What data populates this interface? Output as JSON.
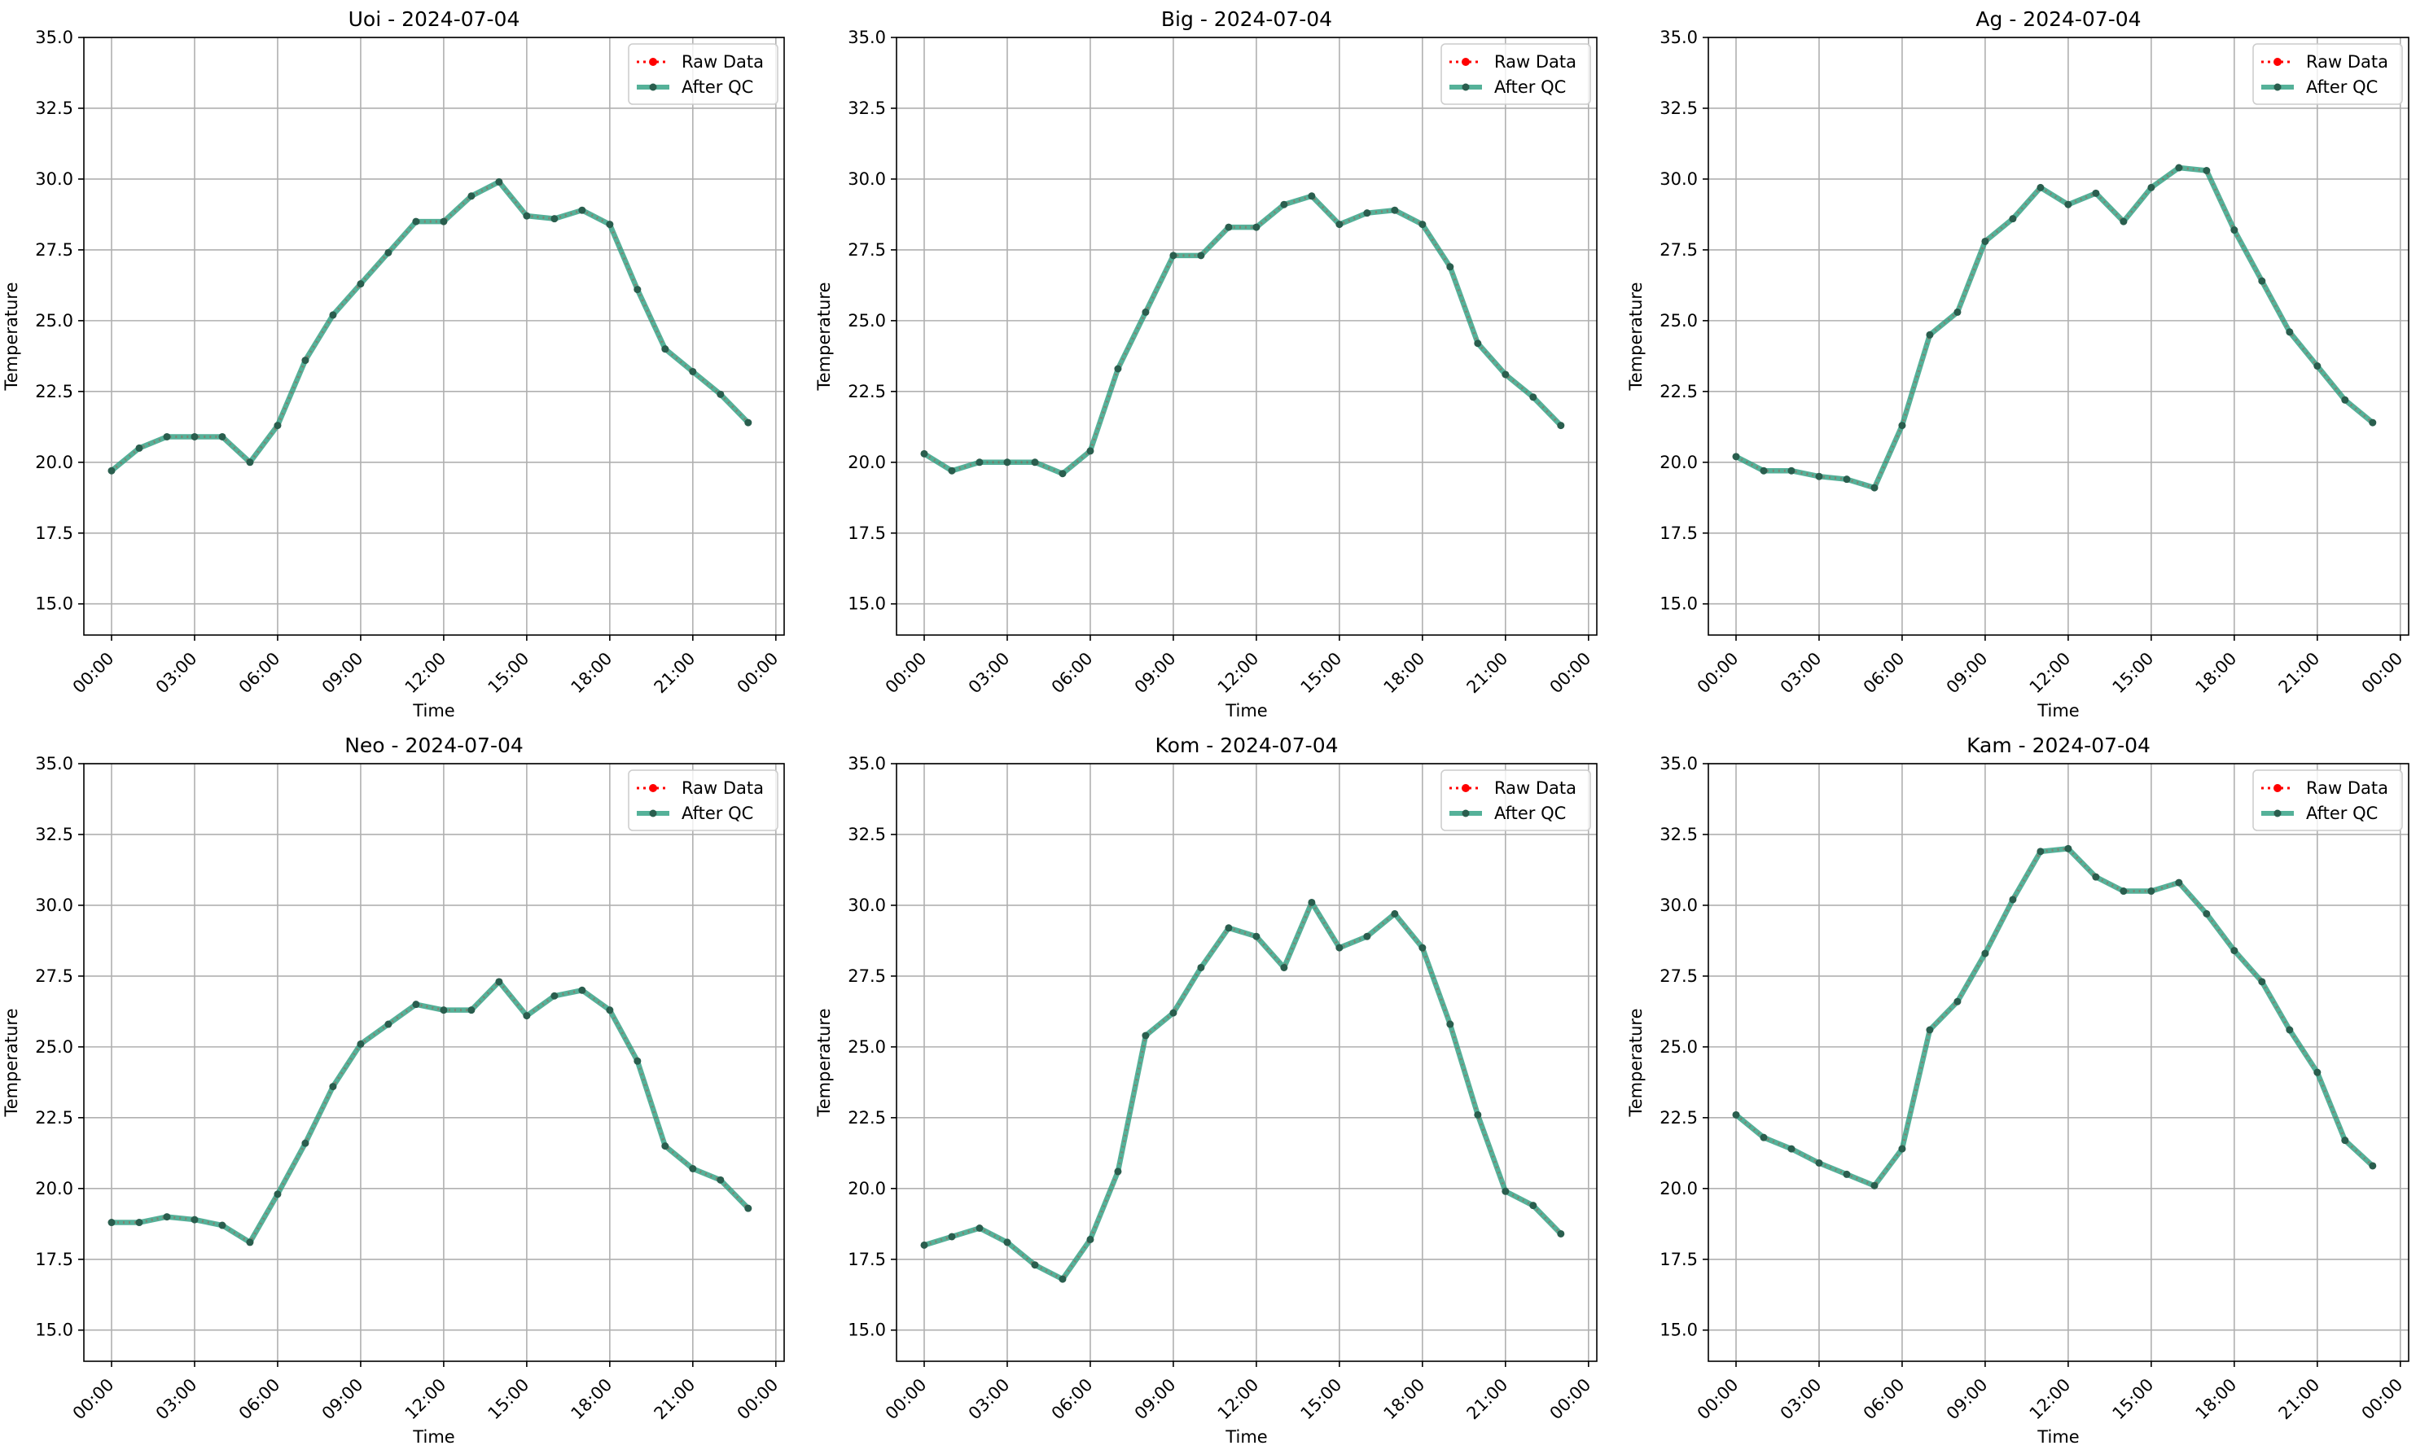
{
  "chart_data": [
    {
      "type": "line",
      "title": "Uoi - 2024-07-04",
      "xlabel": "Time",
      "ylabel": "Temperature",
      "ylim": [
        13.9,
        35.0
      ],
      "yticks": [
        "15.0",
        "17.5",
        "20.0",
        "22.5",
        "25.0",
        "27.5",
        "30.0",
        "32.5",
        "35.0"
      ],
      "xticks": [
        "00:00",
        "03:00",
        "06:00",
        "09:00",
        "12:00",
        "15:00",
        "18:00",
        "21:00",
        "00:00"
      ],
      "xlim_hours": [
        -1.0,
        24.3
      ],
      "grid": true,
      "legend": "top-right",
      "x": [
        "00:00",
        "01:00",
        "02:00",
        "03:00",
        "04:00",
        "05:00",
        "06:00",
        "07:00",
        "08:00",
        "09:00",
        "10:00",
        "11:00",
        "12:00",
        "13:00",
        "14:00",
        "15:00",
        "16:00",
        "17:00",
        "18:00",
        "19:00",
        "20:00",
        "21:00",
        "22:00",
        "23:00"
      ],
      "series": [
        {
          "name": "Raw Data",
          "style": "dotted-marker",
          "color": "#ff0000",
          "values": [
            19.7,
            20.5,
            20.9,
            20.9,
            20.9,
            20.0,
            21.3,
            23.6,
            25.2,
            26.3,
            27.4,
            28.5,
            28.5,
            29.4,
            29.9,
            28.7,
            28.6,
            28.9,
            28.4,
            26.1,
            24.0,
            23.2,
            22.4,
            21.4
          ]
        },
        {
          "name": "After QC",
          "style": "solid-marker",
          "color": "#2a9d7f",
          "values": [
            19.7,
            20.5,
            20.9,
            20.9,
            20.9,
            20.0,
            21.3,
            23.6,
            25.2,
            26.3,
            27.4,
            28.5,
            28.5,
            29.4,
            29.9,
            28.7,
            28.6,
            28.9,
            28.4,
            26.1,
            24.0,
            23.2,
            22.4,
            21.4
          ]
        }
      ]
    },
    {
      "type": "line",
      "title": "Big - 2024-07-04",
      "xlabel": "Time",
      "ylabel": "Temperature",
      "ylim": [
        13.9,
        35.0
      ],
      "yticks": [
        "15.0",
        "17.5",
        "20.0",
        "22.5",
        "25.0",
        "27.5",
        "30.0",
        "32.5",
        "35.0"
      ],
      "xticks": [
        "00:00",
        "03:00",
        "06:00",
        "09:00",
        "12:00",
        "15:00",
        "18:00",
        "21:00",
        "00:00"
      ],
      "xlim_hours": [
        -1.0,
        24.3
      ],
      "grid": true,
      "legend": "top-right",
      "x": [
        "00:00",
        "01:00",
        "02:00",
        "03:00",
        "04:00",
        "05:00",
        "06:00",
        "07:00",
        "08:00",
        "09:00",
        "10:00",
        "11:00",
        "12:00",
        "13:00",
        "14:00",
        "15:00",
        "16:00",
        "17:00",
        "18:00",
        "19:00",
        "20:00",
        "21:00",
        "22:00",
        "23:00"
      ],
      "series": [
        {
          "name": "Raw Data",
          "style": "dotted-marker",
          "color": "#ff0000",
          "values": [
            20.3,
            19.7,
            20.0,
            20.0,
            20.0,
            19.6,
            20.4,
            23.3,
            25.3,
            27.3,
            27.3,
            28.3,
            28.3,
            29.1,
            29.4,
            28.4,
            28.8,
            28.9,
            28.4,
            26.9,
            24.2,
            23.1,
            22.3,
            21.3
          ]
        },
        {
          "name": "After QC",
          "style": "solid-marker",
          "color": "#2a9d7f",
          "values": [
            20.3,
            19.7,
            20.0,
            20.0,
            20.0,
            19.6,
            20.4,
            23.3,
            25.3,
            27.3,
            27.3,
            28.3,
            28.3,
            29.1,
            29.4,
            28.4,
            28.8,
            28.9,
            28.4,
            26.9,
            24.2,
            23.1,
            22.3,
            21.3
          ]
        }
      ]
    },
    {
      "type": "line",
      "title": "Ag - 2024-07-04",
      "xlabel": "Time",
      "ylabel": "Temperature",
      "ylim": [
        13.9,
        35.0
      ],
      "yticks": [
        "15.0",
        "17.5",
        "20.0",
        "22.5",
        "25.0",
        "27.5",
        "30.0",
        "32.5",
        "35.0"
      ],
      "xticks": [
        "00:00",
        "03:00",
        "06:00",
        "09:00",
        "12:00",
        "15:00",
        "18:00",
        "21:00",
        "00:00"
      ],
      "xlim_hours": [
        -1.0,
        24.3
      ],
      "grid": true,
      "legend": "top-right",
      "x": [
        "00:00",
        "01:00",
        "02:00",
        "03:00",
        "04:00",
        "05:00",
        "06:00",
        "07:00",
        "08:00",
        "09:00",
        "10:00",
        "11:00",
        "12:00",
        "13:00",
        "14:00",
        "15:00",
        "16:00",
        "17:00",
        "18:00",
        "19:00",
        "20:00",
        "21:00",
        "22:00",
        "23:00"
      ],
      "series": [
        {
          "name": "Raw Data",
          "style": "dotted-marker",
          "color": "#ff0000",
          "values": [
            20.2,
            19.7,
            19.7,
            19.5,
            19.4,
            19.1,
            21.3,
            24.5,
            25.3,
            27.8,
            28.6,
            29.7,
            29.1,
            29.5,
            28.5,
            29.7,
            30.4,
            30.3,
            28.2,
            26.4,
            24.6,
            23.4,
            22.2,
            21.4
          ]
        },
        {
          "name": "After QC",
          "style": "solid-marker",
          "color": "#2a9d7f",
          "values": [
            20.2,
            19.7,
            19.7,
            19.5,
            19.4,
            19.1,
            21.3,
            24.5,
            25.3,
            27.8,
            28.6,
            29.7,
            29.1,
            29.5,
            28.5,
            29.7,
            30.4,
            30.3,
            28.2,
            26.4,
            24.6,
            23.4,
            22.2,
            21.4
          ]
        }
      ]
    },
    {
      "type": "line",
      "title": "Neo - 2024-07-04",
      "xlabel": "Time",
      "ylabel": "Temperature",
      "ylim": [
        13.9,
        35.0
      ],
      "yticks": [
        "15.0",
        "17.5",
        "20.0",
        "22.5",
        "25.0",
        "27.5",
        "30.0",
        "32.5",
        "35.0"
      ],
      "xticks": [
        "00:00",
        "03:00",
        "06:00",
        "09:00",
        "12:00",
        "15:00",
        "18:00",
        "21:00",
        "00:00"
      ],
      "xlim_hours": [
        -1.0,
        24.3
      ],
      "grid": true,
      "legend": "top-right",
      "x": [
        "00:00",
        "01:00",
        "02:00",
        "03:00",
        "04:00",
        "05:00",
        "06:00",
        "07:00",
        "08:00",
        "09:00",
        "10:00",
        "11:00",
        "12:00",
        "13:00",
        "14:00",
        "15:00",
        "16:00",
        "17:00",
        "18:00",
        "19:00",
        "20:00",
        "21:00",
        "22:00",
        "23:00"
      ],
      "series": [
        {
          "name": "Raw Data",
          "style": "dotted-marker",
          "color": "#ff0000",
          "values": [
            18.8,
            18.8,
            19.0,
            18.9,
            18.7,
            18.1,
            19.8,
            21.6,
            23.6,
            25.1,
            25.8,
            26.5,
            26.3,
            26.3,
            27.3,
            26.1,
            26.8,
            27.0,
            26.3,
            24.5,
            21.5,
            20.7,
            20.3,
            19.3
          ]
        },
        {
          "name": "After QC",
          "style": "solid-marker",
          "color": "#2a9d7f",
          "values": [
            18.8,
            18.8,
            19.0,
            18.9,
            18.7,
            18.1,
            19.8,
            21.6,
            23.6,
            25.1,
            25.8,
            26.5,
            26.3,
            26.3,
            27.3,
            26.1,
            26.8,
            27.0,
            26.3,
            24.5,
            21.5,
            20.7,
            20.3,
            19.3
          ]
        }
      ]
    },
    {
      "type": "line",
      "title": "Kom - 2024-07-04",
      "xlabel": "Time",
      "ylabel": "Temperature",
      "ylim": [
        13.9,
        35.0
      ],
      "yticks": [
        "15.0",
        "17.5",
        "20.0",
        "22.5",
        "25.0",
        "27.5",
        "30.0",
        "32.5",
        "35.0"
      ],
      "xticks": [
        "00:00",
        "03:00",
        "06:00",
        "09:00",
        "12:00",
        "15:00",
        "18:00",
        "21:00",
        "00:00"
      ],
      "xlim_hours": [
        -1.0,
        24.3
      ],
      "grid": true,
      "legend": "top-right",
      "x": [
        "00:00",
        "01:00",
        "02:00",
        "03:00",
        "04:00",
        "05:00",
        "06:00",
        "07:00",
        "08:00",
        "09:00",
        "10:00",
        "11:00",
        "12:00",
        "13:00",
        "14:00",
        "15:00",
        "16:00",
        "17:00",
        "18:00",
        "19:00",
        "20:00",
        "21:00",
        "22:00",
        "23:00"
      ],
      "series": [
        {
          "name": "Raw Data",
          "style": "dotted-marker",
          "color": "#ff0000",
          "values": [
            18.0,
            18.3,
            18.6,
            18.1,
            17.3,
            16.8,
            18.2,
            20.6,
            25.4,
            26.2,
            27.8,
            29.2,
            28.9,
            27.8,
            30.1,
            28.5,
            28.9,
            29.7,
            28.5,
            25.8,
            22.6,
            19.9,
            19.4,
            18.4
          ]
        },
        {
          "name": "After QC",
          "style": "solid-marker",
          "color": "#2a9d7f",
          "values": [
            18.0,
            18.3,
            18.6,
            18.1,
            17.3,
            16.8,
            18.2,
            20.6,
            25.4,
            26.2,
            27.8,
            29.2,
            28.9,
            27.8,
            30.1,
            28.5,
            28.9,
            29.7,
            28.5,
            25.8,
            22.6,
            19.9,
            19.4,
            18.4
          ]
        }
      ]
    },
    {
      "type": "line",
      "title": "Kam - 2024-07-04",
      "xlabel": "Time",
      "ylabel": "Temperature",
      "ylim": [
        13.9,
        35.0
      ],
      "yticks": [
        "15.0",
        "17.5",
        "20.0",
        "22.5",
        "25.0",
        "27.5",
        "30.0",
        "32.5",
        "35.0"
      ],
      "xticks": [
        "00:00",
        "03:00",
        "06:00",
        "09:00",
        "12:00",
        "15:00",
        "18:00",
        "21:00",
        "00:00"
      ],
      "xlim_hours": [
        -1.0,
        24.3
      ],
      "grid": true,
      "legend": "top-right",
      "x": [
        "00:00",
        "01:00",
        "02:00",
        "03:00",
        "04:00",
        "05:00",
        "06:00",
        "07:00",
        "08:00",
        "09:00",
        "10:00",
        "11:00",
        "12:00",
        "13:00",
        "14:00",
        "15:00",
        "16:00",
        "17:00",
        "18:00",
        "19:00",
        "20:00",
        "21:00",
        "22:00",
        "23:00"
      ],
      "series": [
        {
          "name": "Raw Data",
          "style": "dotted-marker",
          "color": "#ff0000",
          "values": [
            22.6,
            21.8,
            21.4,
            20.9,
            20.5,
            20.1,
            21.4,
            25.6,
            26.6,
            28.3,
            30.2,
            31.9,
            32.0,
            31.0,
            30.5,
            30.5,
            30.8,
            29.7,
            28.4,
            27.3,
            25.6,
            24.1,
            21.7,
            20.8
          ]
        },
        {
          "name": "After QC",
          "style": "solid-marker",
          "color": "#2a9d7f",
          "values": [
            22.6,
            21.8,
            21.4,
            20.9,
            20.5,
            20.1,
            21.4,
            25.6,
            26.6,
            28.3,
            30.2,
            31.9,
            32.0,
            31.0,
            30.5,
            30.5,
            30.8,
            29.7,
            28.4,
            27.3,
            25.6,
            24.1,
            21.7,
            20.8
          ]
        }
      ]
    }
  ]
}
